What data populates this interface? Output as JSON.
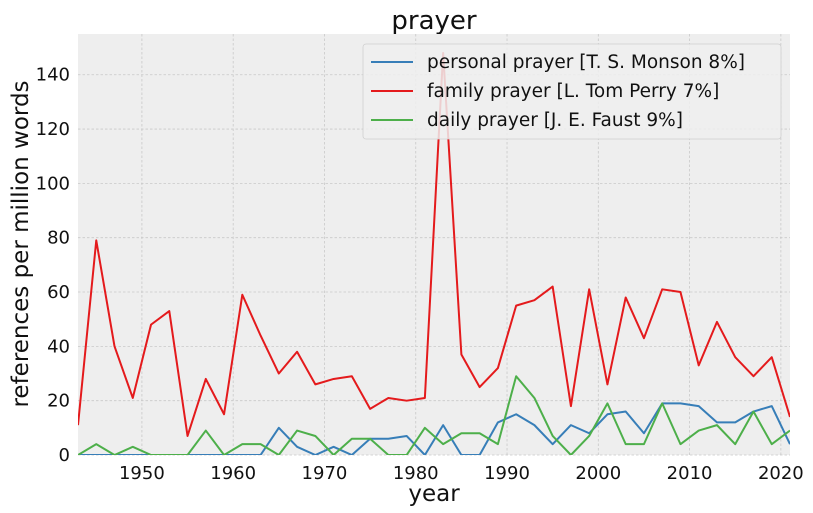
{
  "chart_data": {
    "type": "line",
    "title": "prayer",
    "xlabel": "year",
    "ylabel": "references per million words",
    "xlim": [
      1943,
      2021
    ],
    "ylim": [
      0,
      155
    ],
    "xticks": [
      1950,
      1960,
      1970,
      1980,
      1990,
      2000,
      2010,
      2020
    ],
    "yticks": [
      0,
      20,
      40,
      60,
      80,
      100,
      120,
      140
    ],
    "grid": true,
    "legend_position": "top-right",
    "x": [
      1943,
      1945,
      1947,
      1949,
      1951,
      1953,
      1955,
      1957,
      1959,
      1961,
      1963,
      1965,
      1967,
      1969,
      1971,
      1973,
      1975,
      1977,
      1979,
      1981,
      1983,
      1985,
      1987,
      1989,
      1991,
      1993,
      1995,
      1997,
      1999,
      2001,
      2003,
      2005,
      2007,
      2009,
      2011,
      2013,
      2015,
      2017,
      2019,
      2021
    ],
    "series": [
      {
        "name": "personal prayer [T. S. Monson 8%]",
        "color": "#377eb8",
        "values": [
          0,
          0,
          0,
          0,
          0,
          0,
          0,
          0,
          0,
          0,
          0,
          10,
          3,
          0,
          3,
          0,
          6,
          6,
          7,
          0,
          11,
          0,
          0,
          12,
          15,
          11,
          4,
          11,
          8,
          15,
          16,
          8,
          19,
          19,
          18,
          12,
          12,
          16,
          18,
          4
        ]
      },
      {
        "name": "family prayer [L. Tom Perry 7%]",
        "color": "#e41a1c",
        "values": [
          11,
          79,
          40,
          21,
          48,
          53,
          7,
          28,
          15,
          59,
          44,
          30,
          38,
          26,
          28,
          29,
          17,
          21,
          20,
          21,
          148,
          37,
          25,
          32,
          55,
          57,
          62,
          18,
          61,
          26,
          58,
          43,
          61,
          60,
          33,
          49,
          36,
          29,
          36,
          14
        ]
      },
      {
        "name": "daily prayer [J. E. Faust 9%]",
        "color": "#4daf4a",
        "values": [
          0,
          4,
          0,
          3,
          0,
          0,
          0,
          9,
          0,
          4,
          4,
          0,
          9,
          7,
          0,
          6,
          6,
          0,
          0,
          10,
          4,
          8,
          8,
          4,
          29,
          21,
          7,
          0,
          7,
          19,
          4,
          4,
          19,
          4,
          9,
          11,
          4,
          16,
          4,
          9
        ]
      }
    ]
  }
}
